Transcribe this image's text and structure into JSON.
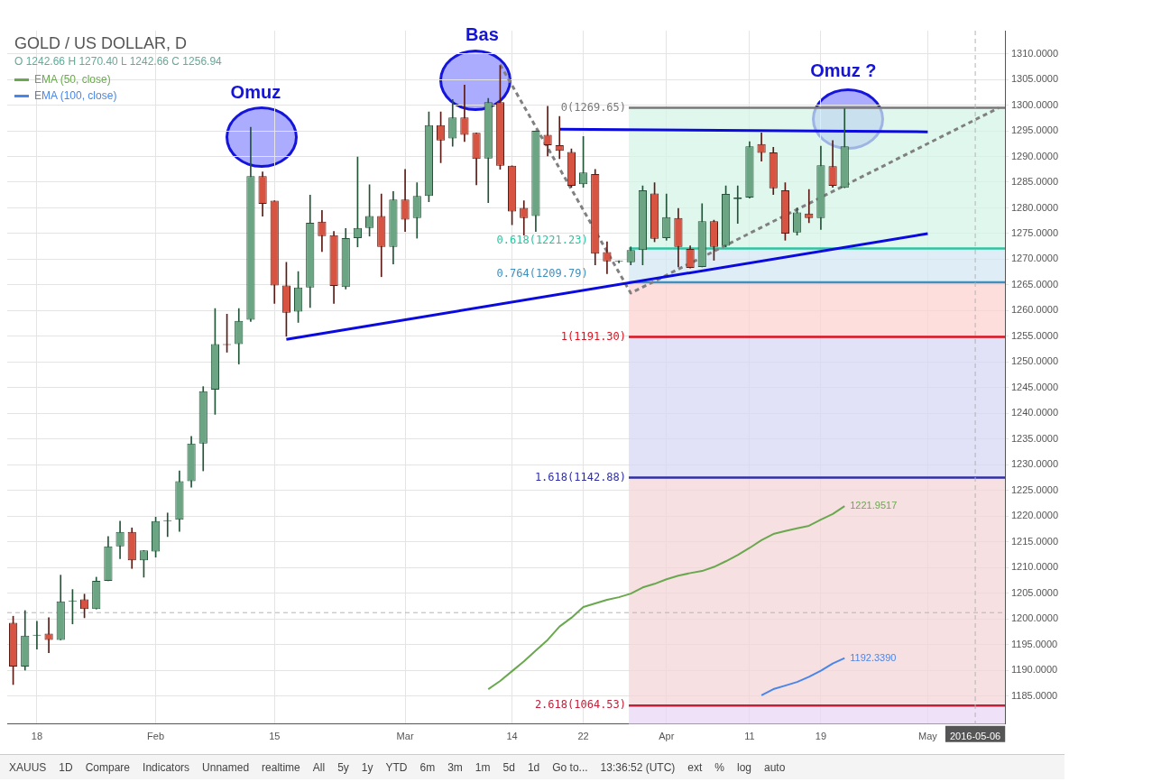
{
  "chart_data": {
    "type": "candlestick",
    "title": "GOLD / US DOLLAR, D",
    "subtitle": "O 1242.66 H 1270.40 L 1242.66 C 1256.94",
    "categories": [
      null,
      null,
      "18",
      null,
      null,
      null,
      null,
      null,
      null,
      null,
      null,
      null,
      "Feb",
      null,
      null,
      null,
      null,
      null,
      null,
      null,
      null,
      null,
      "15",
      null,
      null,
      null,
      null,
      null,
      null,
      null,
      null,
      null,
      null,
      "Mar",
      null,
      null,
      null,
      null,
      null,
      null,
      null,
      null,
      "14",
      null,
      null,
      null,
      null,
      null,
      "22",
      null,
      null,
      null,
      null,
      null,
      null,
      "Apr",
      null,
      null,
      null,
      null,
      null,
      null,
      "11",
      null,
      null,
      null,
      null,
      null,
      "19",
      null,
      null,
      null,
      null,
      null,
      null,
      null,
      null,
      "May",
      null,
      null,
      null,
      "2016-05-06",
      null,
      null
    ],
    "ohlc": [
      [
        1199.2,
        1200.5,
        1187.2,
        1190.7
      ],
      [
        1190.7,
        1201.6,
        1190.0,
        1196.7
      ],
      [
        1196.7,
        1199.5,
        1194.1,
        1196.8
      ],
      [
        1197.1,
        1200.2,
        1193.4,
        1195.9
      ],
      [
        1195.9,
        1208.5,
        1195.9,
        1203.4
      ],
      [
        1203.4,
        1205.7,
        1199.0,
        1203.5
      ],
      [
        1203.8,
        1204.8,
        1200.2,
        1201.9
      ],
      [
        1201.9,
        1208.1,
        1201.9,
        1207.4
      ],
      [
        1207.4,
        1216.0,
        1207.4,
        1214.1
      ],
      [
        1214.1,
        1219.0,
        1211.7,
        1216.9
      ],
      [
        1216.9,
        1217.7,
        1209.8,
        1211.4
      ],
      [
        1211.4,
        1213.3,
        1208.1,
        1213.3
      ],
      [
        1213.1,
        1219.8,
        1212.0,
        1219.0
      ],
      [
        1219.0,
        1220.6,
        1216.0,
        1219.2
      ],
      [
        1219.3,
        1228.8,
        1217.0,
        1226.8
      ],
      [
        1226.8,
        1235.5,
        1225.6,
        1234.1
      ],
      [
        1234.1,
        1245.2,
        1228.8,
        1244.3
      ],
      [
        1244.6,
        1260.4,
        1239.8,
        1253.5
      ],
      [
        1253.5,
        1259.3,
        1251.9,
        1253.3
      ],
      [
        1253.5,
        1260.4,
        1249.6,
        1258.0
      ],
      [
        1258.2,
        1295.7,
        1257.9,
        1286.2
      ],
      [
        1286.2,
        1287.0,
        1278.4,
        1280.8
      ],
      [
        1281.4,
        1281.4,
        1261.4,
        1264.9
      ],
      [
        1264.9,
        1269.4,
        1255.0,
        1259.6
      ],
      [
        1259.8,
        1267.6,
        1257.7,
        1264.5
      ],
      [
        1264.5,
        1282.5,
        1260.6,
        1277.1
      ],
      [
        1277.3,
        1279.5,
        1271.5,
        1274.5
      ],
      [
        1274.7,
        1275.4,
        1261.4,
        1264.8
      ],
      [
        1264.6,
        1276.0,
        1264.2,
        1274.1
      ],
      [
        1274.1,
        1289.9,
        1272.4,
        1276.1
      ],
      [
        1276.1,
        1284.5,
        1274.5,
        1278.4
      ],
      [
        1278.4,
        1282.7,
        1266.6,
        1272.4
      ],
      [
        1272.4,
        1283.2,
        1269.1,
        1281.6
      ],
      [
        1281.6,
        1287.5,
        1275.4,
        1277.7
      ],
      [
        1278.0,
        1284.9,
        1274.1,
        1282.3
      ],
      [
        1282.3,
        1298.7,
        1281.2,
        1296.1
      ],
      [
        1296.1,
        1298.7,
        1288.8,
        1293.1
      ],
      [
        1293.5,
        1301.1,
        1292.0,
        1297.6
      ],
      [
        1297.6,
        1303.9,
        1292.9,
        1294.2
      ],
      [
        1294.6,
        1294.6,
        1284.5,
        1289.5
      ],
      [
        1289.6,
        1301.3,
        1281.0,
        1300.6
      ],
      [
        1300.6,
        1307.7,
        1287.5,
        1288.2
      ],
      [
        1288.2,
        1288.2,
        1276.7,
        1279.3
      ],
      [
        1280.0,
        1281.4,
        1274.7,
        1278.0
      ],
      [
        1278.4,
        1295.0,
        1275.4,
        1295.0
      ],
      [
        1294.2,
        1299.8,
        1290.1,
        1292.2
      ],
      [
        1292.2,
        1297.8,
        1289.6,
        1291.1
      ],
      [
        1290.9,
        1291.5,
        1284.0,
        1284.3
      ],
      [
        1284.6,
        1293.9,
        1284.0,
        1286.9
      ],
      [
        1286.6,
        1287.5,
        1268.9,
        1271.1
      ],
      [
        1271.4,
        1273.4,
        1267.2,
        1269.6
      ],
      [
        1269.5,
        1269.7,
        1269.3,
        1269.5
      ],
      [
        1269.4,
        1272.4,
        1268.9,
        1271.8
      ],
      [
        1271.8,
        1284.3,
        1268.9,
        1283.4
      ],
      [
        1282.8,
        1284.9,
        1273.4,
        1274.0
      ],
      [
        1274.1,
        1282.7,
        1273.7,
        1278.2
      ],
      [
        1278.0,
        1279.9,
        1268.5,
        1272.4
      ],
      [
        1272.0,
        1272.6,
        1268.3,
        1268.3
      ],
      [
        1268.5,
        1280.8,
        1268.5,
        1277.4
      ],
      [
        1277.4,
        1277.6,
        1269.8,
        1272.4
      ],
      [
        1272.6,
        1284.3,
        1272.4,
        1282.7
      ],
      [
        1281.7,
        1284.3,
        1277.0,
        1282.0
      ],
      [
        1282.0,
        1292.9,
        1281.9,
        1292.0
      ],
      [
        1292.4,
        1294.6,
        1289.1,
        1290.7
      ],
      [
        1290.8,
        1291.8,
        1282.6,
        1283.8
      ],
      [
        1283.4,
        1284.9,
        1273.7,
        1275.0
      ],
      [
        1275.2,
        1280.0,
        1274.7,
        1279.1
      ],
      [
        1278.9,
        1283.6,
        1277.1,
        1278.0
      ],
      [
        1278.0,
        1292.0,
        1275.8,
        1288.3
      ],
      [
        1288.1,
        1293.1,
        1284.0,
        1284.3
      ],
      [
        1283.9,
        1299.3,
        1283.9,
        1292.0
      ],
      null,
      null,
      null,
      null,
      null,
      null,
      null,
      null,
      null,
      null,
      null,
      null,
      null
    ],
    "series": [
      {
        "name": "EMA (50, close)",
        "type": "line",
        "color": "#6aa84f",
        "values": [
          null,
          null,
          null,
          null,
          null,
          null,
          null,
          null,
          null,
          null,
          null,
          null,
          null,
          null,
          null,
          null,
          null,
          null,
          null,
          null,
          null,
          null,
          null,
          null,
          null,
          null,
          null,
          null,
          null,
          null,
          null,
          null,
          null,
          null,
          null,
          null,
          null,
          null,
          null,
          null,
          1186.3,
          1187.9,
          1189.8,
          1191.7,
          1193.8,
          1195.9,
          1198.5,
          1200.2,
          1202.3,
          1203.0,
          1203.7,
          1204.2,
          1204.9,
          1206.1,
          1206.8,
          1207.7,
          1208.4,
          1208.9,
          1209.3,
          1210.1,
          1211.2,
          1212.4,
          1213.8,
          1215.3,
          1216.5,
          1217.1,
          1217.6,
          1218.1,
          1219.3,
          1220.4,
          1221.9517,
          null,
          null,
          null,
          null,
          null,
          null,
          null,
          null,
          null,
          null,
          null,
          null,
          null
        ],
        "value_labels": [
          null,
          null,
          null,
          null,
          null,
          null,
          null,
          null,
          null,
          null,
          null,
          null,
          null,
          null,
          null,
          null,
          null,
          null,
          null,
          null,
          null,
          null,
          null,
          null,
          null,
          null,
          null,
          null,
          null,
          null,
          null,
          null,
          null,
          null,
          null,
          null,
          null,
          null,
          null,
          null,
          null,
          null,
          null,
          null,
          null,
          null,
          null,
          null,
          null,
          null,
          null,
          null,
          null,
          null,
          null,
          null,
          null,
          null,
          null,
          null,
          null,
          null,
          null,
          null,
          null,
          null,
          null,
          null,
          null,
          null,
          "1221.9517",
          null,
          null,
          null,
          null,
          null,
          null,
          null,
          null,
          null,
          null,
          null,
          null,
          null
        ]
      },
      {
        "name": "EMA (100, close)",
        "type": "line",
        "color": "#4a86e8",
        "values": [
          null,
          null,
          null,
          null,
          null,
          null,
          null,
          null,
          null,
          null,
          null,
          null,
          null,
          null,
          null,
          null,
          null,
          null,
          null,
          null,
          null,
          null,
          null,
          null,
          null,
          null,
          null,
          null,
          null,
          null,
          null,
          null,
          null,
          null,
          null,
          null,
          null,
          null,
          null,
          null,
          null,
          null,
          null,
          null,
          null,
          null,
          null,
          null,
          null,
          null,
          null,
          null,
          null,
          null,
          null,
          null,
          null,
          null,
          null,
          null,
          null,
          null,
          null,
          1185.1,
          1186.3,
          1187.0,
          1187.7,
          1188.7,
          1189.9,
          1191.3,
          1192.339,
          null,
          null,
          null,
          null,
          null,
          null,
          null,
          null,
          null,
          null,
          null,
          null,
          null
        ],
        "value_labels": [
          null,
          null,
          null,
          null,
          null,
          null,
          null,
          null,
          null,
          null,
          null,
          null,
          null,
          null,
          null,
          null,
          null,
          null,
          null,
          null,
          null,
          null,
          null,
          null,
          null,
          null,
          null,
          null,
          null,
          null,
          null,
          null,
          null,
          null,
          null,
          null,
          null,
          null,
          null,
          null,
          null,
          null,
          null,
          null,
          null,
          null,
          null,
          null,
          null,
          null,
          null,
          null,
          null,
          null,
          null,
          null,
          null,
          null,
          null,
          null,
          null,
          null,
          null,
          null,
          null,
          null,
          null,
          null,
          null,
          null,
          "1192.3390",
          null,
          null,
          null,
          null,
          null,
          null,
          null,
          null,
          null,
          null,
          null,
          null,
          null
        ]
      },
      {
        "type": "line",
        "color": "#0a0ae0",
        "values": [
          null,
          null,
          null,
          null,
          null,
          null,
          null,
          null,
          null,
          null,
          null,
          null,
          null,
          null,
          null,
          null,
          null,
          null,
          null,
          null,
          null,
          null,
          null,
          1254.4,
          null,
          null,
          null,
          null,
          null,
          null,
          null,
          null,
          null,
          null,
          null,
          null,
          null,
          null,
          null,
          null,
          null,
          null,
          null,
          null,
          null,
          null,
          null,
          null,
          null,
          null,
          null,
          null,
          null,
          null,
          null,
          null,
          null,
          null,
          null,
          null,
          null,
          null,
          null,
          null,
          null,
          null,
          null,
          null,
          null,
          null,
          null,
          null,
          null,
          null,
          null,
          null,
          null,
          1275.0,
          null,
          null,
          null,
          null,
          null,
          null
        ]
      },
      {
        "type": "line",
        "color": "#0a0ae0",
        "values": [
          null,
          null,
          null,
          null,
          null,
          null,
          null,
          null,
          null,
          null,
          null,
          null,
          null,
          null,
          null,
          null,
          null,
          null,
          null,
          null,
          null,
          null,
          null,
          null,
          null,
          null,
          null,
          null,
          null,
          null,
          null,
          null,
          null,
          null,
          null,
          null,
          null,
          null,
          null,
          null,
          null,
          null,
          null,
          null,
          null,
          null,
          1295.3,
          null,
          null,
          null,
          null,
          null,
          null,
          null,
          null,
          null,
          null,
          null,
          null,
          null,
          null,
          null,
          null,
          null,
          null,
          null,
          null,
          null,
          null,
          null,
          null,
          null,
          null,
          null,
          null,
          null,
          null,
          1294.8,
          null,
          null,
          null,
          null,
          null,
          null
        ]
      },
      {
        "type": "line",
        "color": "#808080",
        "line_style": "dashed",
        "values": [
          null,
          null,
          null,
          null,
          null,
          null,
          null,
          null,
          null,
          null,
          null,
          null,
          null,
          null,
          null,
          null,
          null,
          null,
          null,
          null,
          null,
          null,
          null,
          null,
          null,
          null,
          null,
          null,
          null,
          null,
          null,
          null,
          null,
          null,
          null,
          null,
          null,
          null,
          null,
          null,
          null,
          1307.9,
          null,
          null,
          null,
          null,
          null,
          null,
          null,
          null,
          null,
          null,
          1263.4,
          null,
          null,
          null,
          null,
          null,
          null,
          null,
          null,
          null,
          null,
          null,
          null,
          null,
          null,
          null,
          null,
          null,
          null,
          null,
          null,
          null,
          null,
          null,
          null,
          null,
          null,
          null,
          null,
          null,
          null,
          1299.5
        ]
      }
    ],
    "ylim": [
      1179.5,
      1314.5
    ],
    "yticks": [
      {
        "value": 1185,
        "label": "1185.0000"
      },
      {
        "value": 1190,
        "label": "1190.0000"
      },
      {
        "value": 1195,
        "label": "1195.0000"
      },
      {
        "value": 1200,
        "label": "1200.0000"
      },
      {
        "value": 1205,
        "label": "1205.0000"
      },
      {
        "value": 1210,
        "label": "1210.0000"
      },
      {
        "value": 1215,
        "label": "1215.0000"
      },
      {
        "value": 1220,
        "label": "1220.0000"
      },
      {
        "value": 1225,
        "label": "1225.0000"
      },
      {
        "value": 1230,
        "label": "1230.0000"
      },
      {
        "value": 1235,
        "label": "1235.0000"
      },
      {
        "value": 1240,
        "label": "1240.0000"
      },
      {
        "value": 1245,
        "label": "1245.0000"
      },
      {
        "value": 1250,
        "label": "1250.0000"
      },
      {
        "value": 1255,
        "label": "1255.0000"
      },
      {
        "value": 1260,
        "label": "1260.0000"
      },
      {
        "value": 1265,
        "label": "1265.0000"
      },
      {
        "value": 1270,
        "label": "1270.0000"
      },
      {
        "value": 1275,
        "label": "1275.0000"
      },
      {
        "value": 1280,
        "label": "1280.0000"
      },
      {
        "value": 1285,
        "label": "1285.0000"
      },
      {
        "value": 1290,
        "label": "1290.0000"
      },
      {
        "value": 1295,
        "label": "1295.0000"
      },
      {
        "value": 1300,
        "label": "1300.0000"
      },
      {
        "value": 1305,
        "label": "1305.0000"
      },
      {
        "value": 1310,
        "label": "1310.0000"
      }
    ],
    "bands": [
      {
        "axis": "y",
        "from": 1272.1,
        "to": 1299.5,
        "color": "#d4f4e8"
      },
      {
        "axis": "y",
        "from": 1265.5,
        "to": 1272.1,
        "color": "#d3e8f3"
      },
      {
        "axis": "y",
        "from": 1254.9,
        "to": 1265.5,
        "color": "#fdd0d0"
      },
      {
        "axis": "y",
        "from": 1227.5,
        "to": 1254.9,
        "color": "#d5d5f4"
      },
      {
        "axis": "y",
        "from": 1183.1,
        "to": 1227.5,
        "color": "#f4d4d6"
      },
      {
        "axis": "y",
        "from": 1179.5,
        "to": 1183.1,
        "color": "#e9d6f4"
      }
    ],
    "ref_lines": [
      {
        "axis": "y",
        "value": 1299.5,
        "color": "#787878"
      },
      {
        "axis": "y",
        "value": 1272.1,
        "color": "#2ec4a0"
      },
      {
        "axis": "y",
        "value": 1265.5,
        "color": "#3f8fbf"
      },
      {
        "axis": "y",
        "value": 1254.9,
        "color": "#e0101e"
      },
      {
        "axis": "y",
        "value": 1227.5,
        "color": "#2e2ea8"
      },
      {
        "axis": "y",
        "value": 1183.1,
        "color": "#c0203a"
      },
      {
        "axis": "y",
        "value": 1201.2,
        "color": "#b4b4b4",
        "line_style": "dashed"
      },
      {
        "axis": "x",
        "value": "2016-05-06",
        "color": "#b4b4b4",
        "line_style": "dashed"
      }
    ],
    "annotations": [
      "Omuz",
      "Bas",
      "Omuz ?",
      "0(1269.65)",
      "0.618(1221.23)",
      "0.764(1209.79)",
      "1(1191.30)",
      "1.618(1142.88)",
      "2.618(1064.53)",
      "XAUUS",
      "1D",
      "Compare",
      "Indicators",
      "Unnamed",
      "realtime",
      "All",
      "5y",
      "1y",
      "YTD",
      "6m",
      "3m",
      "1m",
      "5d",
      "1d",
      "Go to...",
      "13:36:52 (UTC)",
      "ext",
      "%",
      "log",
      "auto"
    ],
    "grid": true,
    "legend": "top left"
  }
}
